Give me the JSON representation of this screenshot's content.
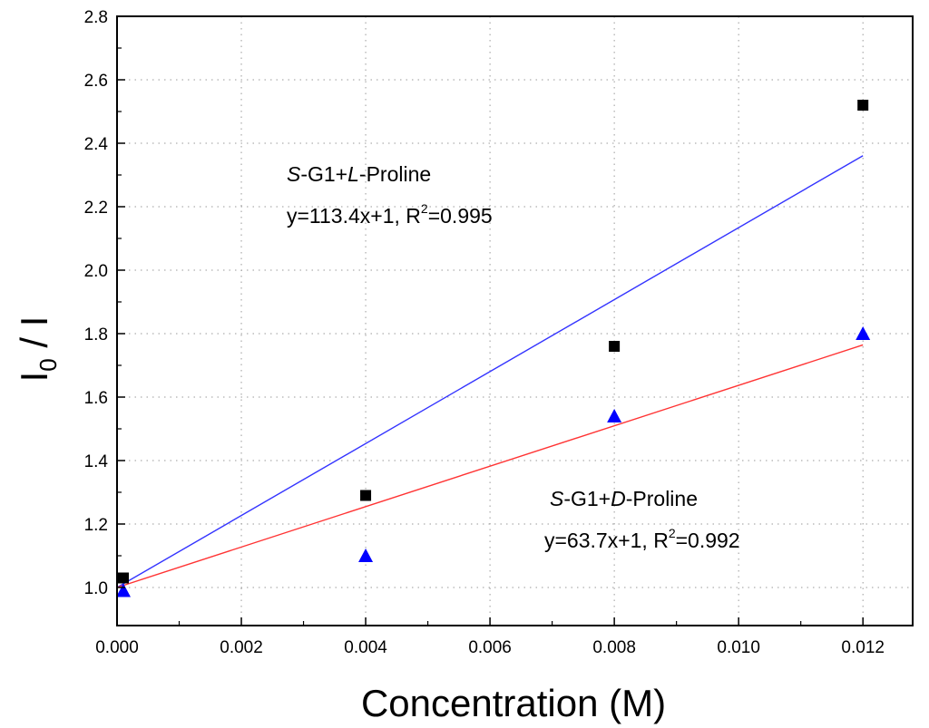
{
  "chart_data": {
    "type": "scatter",
    "title": "",
    "xlabel": "Concentration (M)",
    "ylabel": {
      "main": "I",
      "sub": "0",
      "rest": " / I"
    },
    "xlim": [
      0.0,
      0.0128
    ],
    "ylim": [
      0.88,
      2.8
    ],
    "x_ticks": [
      "0.000",
      "0.002",
      "0.004",
      "0.006",
      "0.008",
      "0.010",
      "0.012"
    ],
    "x_tick_values": [
      0.0,
      0.002,
      0.004,
      0.006,
      0.008,
      0.01,
      0.012
    ],
    "y_ticks": [
      "1.0",
      "1.2",
      "1.4",
      "1.6",
      "1.8",
      "2.0",
      "2.2",
      "2.4",
      "2.6",
      "2.8"
    ],
    "y_tick_values": [
      1.0,
      1.2,
      1.4,
      1.6,
      1.8,
      2.0,
      2.2,
      2.4,
      2.6,
      2.8
    ],
    "series": [
      {
        "name": "S-G1+L-Proline",
        "marker": "square",
        "color": "#000000",
        "x": [
          0.0,
          0.004,
          0.008,
          0.012
        ],
        "y": [
          1.03,
          1.29,
          1.76,
          2.52
        ],
        "fit": {
          "slope": 113.4,
          "intercept": 1,
          "r2": 0.995,
          "color": "#3333ff"
        }
      },
      {
        "name": "S-G1+D-Proline",
        "marker": "triangle",
        "color": "#0000ff",
        "x": [
          0.0,
          0.004,
          0.008,
          0.012
        ],
        "y": [
          0.99,
          1.1,
          1.54,
          1.8
        ],
        "fit": {
          "slope": 63.7,
          "intercept": 1,
          "r2": 0.992,
          "color": "#ff3333"
        }
      }
    ],
    "annotations": {
      "l_proline": {
        "prefix_italic": "S",
        "middle": "-G1+",
        "enantiomer_italic": "L",
        "suffix": "-Proline",
        "eq_pre": "y=113.4x+1, R",
        "eq_sup": "2",
        "eq_post": "=0.995"
      },
      "d_proline": {
        "prefix_italic": "S",
        "middle": "-G1+",
        "enantiomer_italic": "D",
        "suffix": "-Proline",
        "eq_pre": "y=63.7x+1, R",
        "eq_sup": "2",
        "eq_post": "=0.992"
      }
    }
  }
}
